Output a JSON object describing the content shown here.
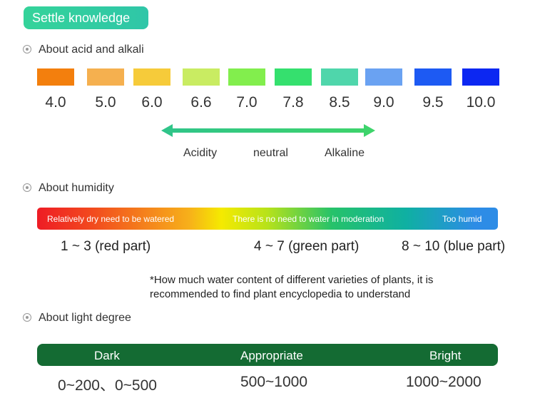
{
  "header": {
    "title": "Settle knowledge"
  },
  "sections": {
    "acid": "About acid and alkali",
    "humidity": "About humidity",
    "light": "About light degree"
  },
  "ph": {
    "colors": [
      "#f37f0d",
      "#f5b04f",
      "#f6cb3a",
      "#c9ec62",
      "#82ee4d",
      "#35e06e",
      "#4fd6ab",
      "#6aa2f2",
      "#1d5af3",
      "#0c27f2"
    ],
    "labels": [
      "4.0",
      "5.0",
      "6.0",
      "6.6",
      "7.0",
      "7.8",
      "8.5",
      "9.0",
      "9.5",
      "10.0"
    ],
    "scale": {
      "acidity": "Acidity",
      "neutral": "neutral",
      "alkaline": "Alkaline"
    }
  },
  "humidity": {
    "dry": "Relatively dry need to be watered",
    "moderate": "There is no need to water in moderation",
    "humid": "Too humid",
    "range_red": "1 ~ 3 (red part)",
    "range_green": "4 ~ 7 (green part)",
    "range_blue": "8 ~ 10 (blue part)",
    "note": "*How much water content of different varieties of plants, it is recommended to find plant encyclopedia to understand"
  },
  "light": {
    "dark": "Dark",
    "appropriate": "Appropriate",
    "bright": "Bright",
    "range_dark": "0~200、0~500",
    "range_appropriate": "500~1000",
    "range_bright": "1000~2000"
  }
}
